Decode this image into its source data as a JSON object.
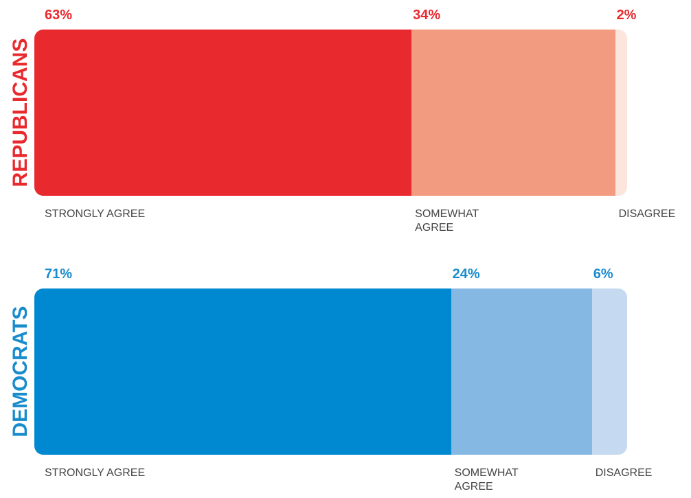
{
  "chart_data": [
    {
      "type": "stacked_bar",
      "title": "REPUBLICANS",
      "color": "#e8292e",
      "series": [
        {
          "name": "STRONGLY AGREE",
          "color": "#e8292e",
          "values": [
            63
          ],
          "value_labels": [
            "63%"
          ]
        },
        {
          "name": "SOMEWHAT AGREE",
          "color": "#f39b80",
          "values": [
            34
          ],
          "value_labels": [
            "34%"
          ]
        },
        {
          "name": "DISAGREE",
          "color": "#fce5dc",
          "values": [
            2
          ],
          "value_labels": [
            "2%"
          ]
        }
      ]
    },
    {
      "type": "stacked_bar",
      "title": "DEMOCRATS",
      "color": "#1a8ccc",
      "series": [
        {
          "name": "STRONGLY AGREE",
          "color": "#0089d0",
          "values": [
            71
          ],
          "value_labels": [
            "71%"
          ]
        },
        {
          "name": "SOMEWHAT AGREE",
          "color": "#85b8e2",
          "values": [
            24
          ],
          "value_labels": [
            "24%"
          ]
        },
        {
          "name": "DISAGREE",
          "color": "#c5daf0",
          "values": [
            6
          ],
          "value_labels": [
            "6%"
          ]
        }
      ]
    }
  ]
}
